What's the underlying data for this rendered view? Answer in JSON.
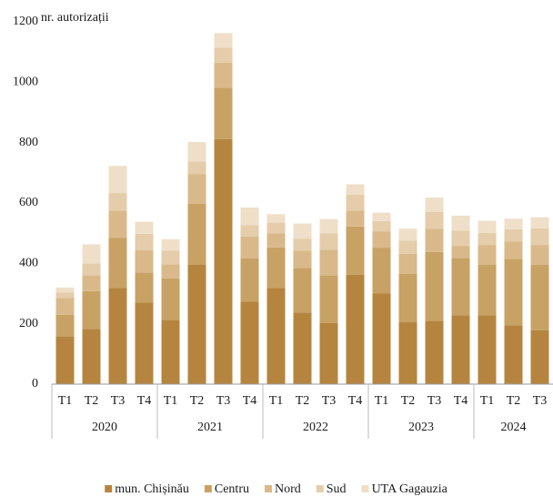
{
  "chart_data": {
    "type": "stacked-bar",
    "y_label": "nr. autorizații",
    "groups": [
      {
        "name": "2020",
        "categories": [
          "T1",
          "T2",
          "T3",
          "T4"
        ]
      },
      {
        "name": "2021",
        "categories": [
          "T1",
          "T2",
          "T3",
          "T4"
        ]
      },
      {
        "name": "2022",
        "categories": [
          "T1",
          "T2",
          "T3",
          "T4"
        ]
      },
      {
        "name": "2023",
        "categories": [
          "T1",
          "T2",
          "T3",
          "T4"
        ]
      },
      {
        "name": "2024",
        "categories": [
          "T1",
          "T2",
          "T3"
        ]
      }
    ],
    "series": [
      {
        "name": "mun. Chișinău",
        "color": "#b5853f",
        "values": [
          158,
          183,
          318,
          270,
          213,
          395,
          812,
          273,
          318,
          237,
          203,
          362,
          300,
          205,
          210,
          228,
          228,
          195,
          178
        ]
      },
      {
        "name": "Centru",
        "color": "#c8a264",
        "values": [
          72,
          125,
          167,
          100,
          137,
          203,
          170,
          143,
          135,
          148,
          157,
          160,
          152,
          160,
          228,
          190,
          168,
          220,
          218
        ]
      },
      {
        "name": "Nord",
        "color": "#d9b98a",
        "values": [
          55,
          52,
          90,
          73,
          47,
          97,
          83,
          73,
          47,
          57,
          85,
          53,
          53,
          67,
          77,
          40,
          65,
          58,
          65
        ]
      },
      {
        "name": "Sud",
        "color": "#e5ccaa",
        "values": [
          18,
          40,
          58,
          55,
          45,
          42,
          50,
          38,
          35,
          40,
          55,
          52,
          35,
          43,
          55,
          50,
          40,
          40,
          55
        ]
      },
      {
        "name": "UTA Gagauzia",
        "color": "#efdfc8",
        "values": [
          17,
          63,
          90,
          40,
          38,
          65,
          48,
          58,
          28,
          50,
          47,
          35,
          28,
          40,
          48,
          50,
          40,
          35,
          37
        ]
      }
    ],
    "ylim": [
      0,
      1200
    ],
    "yticks": [
      0,
      200,
      400,
      600,
      800,
      1000,
      1200
    ],
    "grid": false
  }
}
